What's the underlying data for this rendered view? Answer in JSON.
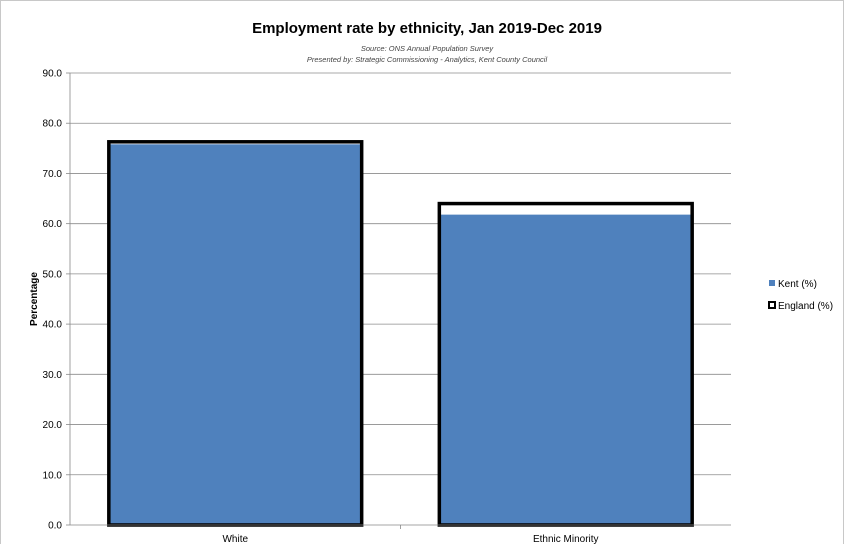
{
  "chart_data": {
    "type": "bar",
    "title": "Employment rate by ethnicity, Jan 2019-Dec 2019",
    "subtitle_lines": [
      "Source: ONS Annual Population Survey",
      "Presented by: Strategic Commissioning - Analytics, Kent County Council"
    ],
    "xlabel": "",
    "ylabel": "Percentage",
    "ylim": [
      0,
      90
    ],
    "yticks": [
      0,
      10,
      20,
      30,
      40,
      50,
      60,
      70,
      80,
      90
    ],
    "ytick_labels": [
      "0.0",
      "10.0",
      "20.0",
      "30.0",
      "40.0",
      "50.0",
      "60.0",
      "70.0",
      "80.0",
      "90.0"
    ],
    "grid": true,
    "legend_position": "right",
    "categories": [
      "White",
      "Ethnic Minority"
    ],
    "series": [
      {
        "name": "Kent (%)",
        "values": [
          75.8,
          61.8
        ],
        "color": "#4f81bd",
        "style": "filled-bar"
      },
      {
        "name": "England (%)",
        "values": [
          76.3,
          64.0
        ],
        "color": "#000000",
        "style": "outline-bar"
      }
    ]
  }
}
